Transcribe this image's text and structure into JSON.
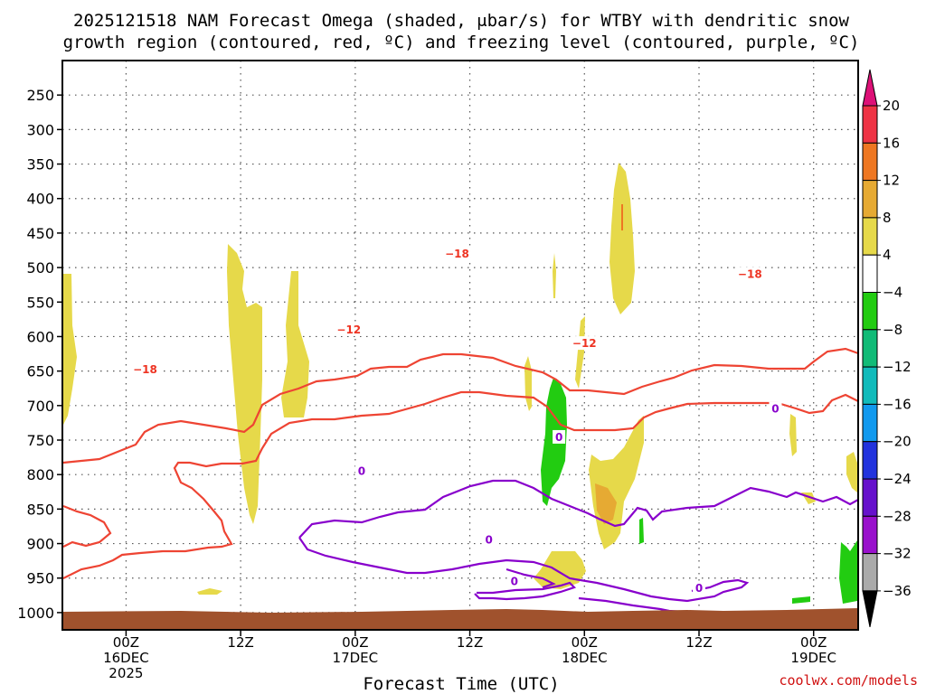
{
  "chart_data": {
    "type": "time-height cross section",
    "title_line1": "2025121518 NAM Forecast Omega (shaded, μbar/s) for WTBY with dendritic snow",
    "title_line2": "growth region (contoured, red, ºC) and freezing level (contoured, purple, ºC)",
    "xlabel": "Forecast Time (UTC)",
    "credit": "coolwx.com/models",
    "pressure_levels": [
      250,
      300,
      350,
      400,
      450,
      500,
      550,
      600,
      650,
      700,
      750,
      800,
      850,
      900,
      950,
      1000
    ],
    "pressure_range": [
      200,
      1025
    ],
    "x_range_hours": [
      -10,
      115
    ],
    "time_ticks": [
      {
        "h": 0,
        "line1": "00Z",
        "line2": "16DEC",
        "line3": "2025"
      },
      {
        "h": 18,
        "line1": "12Z"
      },
      {
        "h": 36,
        "line1": "00Z",
        "line2": "17DEC"
      },
      {
        "h": 54,
        "line1": "12Z"
      },
      {
        "h": 72,
        "line1": "00Z",
        "line2": "18DEC"
      },
      {
        "h": 90,
        "line1": "12Z"
      },
      {
        "h": 108,
        "line1": "00Z",
        "line2": "19DEC"
      }
    ],
    "colorbar": {
      "labels": [
        "20",
        "16",
        "12",
        "8",
        "4",
        "−4",
        "−8",
        "−12",
        "−16",
        "−20",
        "−24",
        "−28",
        "−32",
        "−36"
      ],
      "colors": [
        "#ee3344",
        "#ee7722",
        "#e6aa33",
        "#e6d94a",
        "#ffffff",
        "#22cc11",
        "#11bb77",
        "#11bbbb",
        "#1199ee",
        "#2233dd",
        "#6611cc",
        "#9911cc",
        "#aaaaaa"
      ],
      "top_color": "#dd1177",
      "bottom_color": "#000000"
    },
    "contour_labels": [
      {
        "text": "−18",
        "kind": "dgz",
        "h": 3,
        "p": 648
      },
      {
        "text": "−18",
        "kind": "dgz",
        "h": 52,
        "p": 480
      },
      {
        "text": "−18",
        "kind": "dgz",
        "h": 98,
        "p": 510
      },
      {
        "text": "−12",
        "kind": "dgz",
        "h": 35,
        "p": 590
      },
      {
        "text": "−12",
        "kind": "dgz",
        "h": 72,
        "p": 610
      },
      {
        "text": "0",
        "kind": "freezing",
        "h": 37,
        "p": 795
      },
      {
        "text": "0",
        "kind": "freezing",
        "h": 57,
        "p": 895
      },
      {
        "text": "0",
        "kind": "freezing",
        "h": 61,
        "p": 955
      },
      {
        "text": "0",
        "kind": "freezing",
        "h": 68,
        "p": 746
      },
      {
        "text": "0",
        "kind": "freezing",
        "h": 102,
        "p": 705
      },
      {
        "text": "0",
        "kind": "freezing",
        "h": 90,
        "p": 965
      }
    ],
    "terrain_color": "#a0522d",
    "dgz_color": "#ee4433",
    "freezing_color": "#8800cc"
  }
}
